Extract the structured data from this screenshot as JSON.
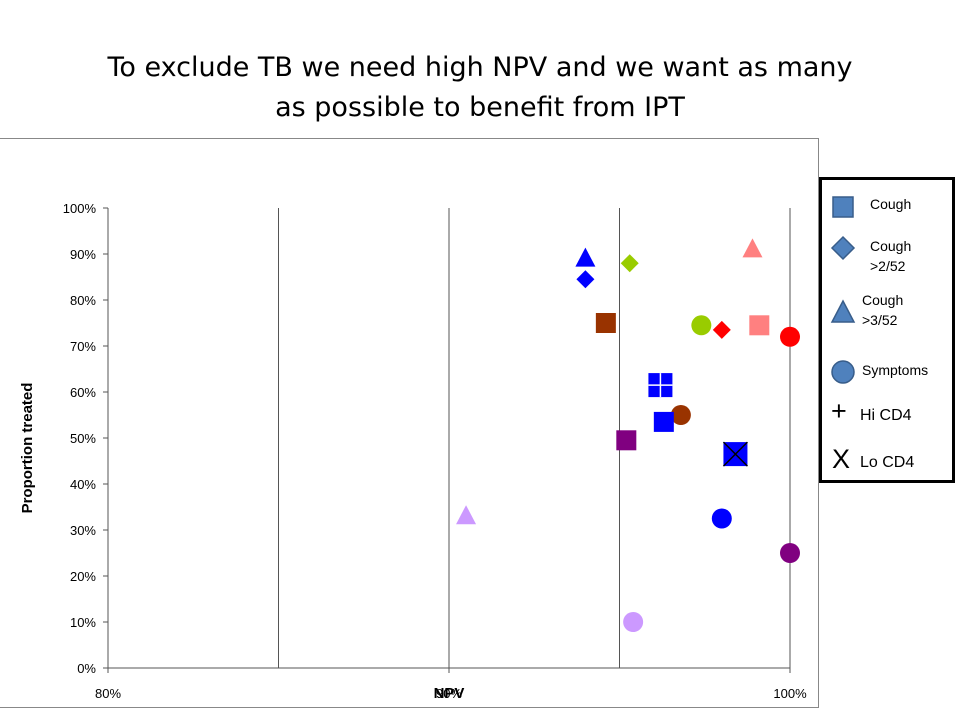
{
  "slide": {
    "title_line1": "To exclude TB we need high NPV and we want as many",
    "title_line2": "as possible to benefit from IPT"
  },
  "legend": {
    "cough": "Cough",
    "cough_2_line1": "Cough",
    "cough_2_line2": ">2/52",
    "cough_3_line1": "Cough",
    "cough_3_line2": ">3/52",
    "symptoms": "Symptoms",
    "hi_marker": "+",
    "hi_label": "Hi CD4",
    "lo_marker": "X",
    "lo_label": "Lo CD4"
  },
  "chart_data": {
    "type": "scatter",
    "title": "",
    "xlabel": "NPV",
    "ylabel": "Proportion treated",
    "xlim": [
      80,
      100
    ],
    "ylim": [
      0,
      100
    ],
    "x_ticks": [
      "80%",
      "90%",
      "100%"
    ],
    "y_ticks": [
      "0%",
      "10%",
      "20%",
      "30%",
      "40%",
      "50%",
      "60%",
      "70%",
      "80%",
      "90%",
      "100%"
    ],
    "grid": "vertical",
    "legend_position": "right",
    "series": [
      {
        "marker": "triangle",
        "color": "#0000ff",
        "x": 94.0,
        "y": 89
      },
      {
        "marker": "diamond",
        "color": "#0000ff",
        "x": 94.0,
        "y": 84.5
      },
      {
        "marker": "diamond",
        "color": "#99cc00",
        "x": 95.3,
        "y": 88
      },
      {
        "marker": "triangle",
        "color": "#ff8080",
        "x": 98.9,
        "y": 91
      },
      {
        "marker": "square",
        "color": "#993300",
        "x": 94.6,
        "y": 75
      },
      {
        "marker": "circle",
        "color": "#99cc00",
        "x": 97.4,
        "y": 74.5
      },
      {
        "marker": "diamond",
        "color": "#ff0000",
        "x": 98.0,
        "y": 73.5
      },
      {
        "marker": "square",
        "color": "#ff8080",
        "x": 99.1,
        "y": 74.5
      },
      {
        "marker": "circle",
        "color": "#ff0000",
        "x": 100.0,
        "y": 72
      },
      {
        "marker": "square-plus",
        "color": "#0000ff",
        "x": 96.2,
        "y": 61.5
      },
      {
        "marker": "circle",
        "color": "#993300",
        "x": 96.8,
        "y": 55
      },
      {
        "marker": "square",
        "color": "#0000ff",
        "x": 96.3,
        "y": 53.5
      },
      {
        "marker": "square",
        "color": "#800080",
        "x": 95.2,
        "y": 49.5
      },
      {
        "marker": "square-x",
        "color": "#0000ff",
        "x": 98.4,
        "y": 46.5
      },
      {
        "marker": "triangle",
        "color": "#cc99ff",
        "x": 90.5,
        "y": 33
      },
      {
        "marker": "circle",
        "color": "#0000ff",
        "x": 98.0,
        "y": 32.5
      },
      {
        "marker": "circle",
        "color": "#800080",
        "x": 100.0,
        "y": 25
      },
      {
        "marker": "circle",
        "color": "#cc99ff",
        "x": 95.4,
        "y": 10
      }
    ]
  }
}
